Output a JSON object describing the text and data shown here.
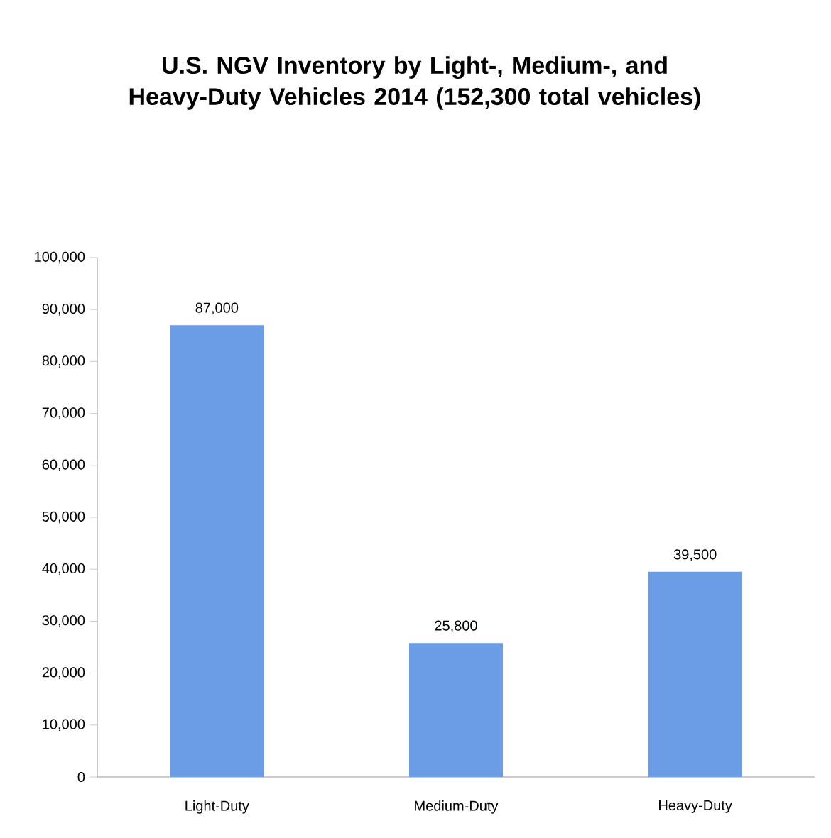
{
  "chart_data": {
    "type": "bar",
    "title": "U.S. NGV Inventory by Light-, Medium-, and Heavy-Duty Vehicles 2014 (152,300 total vehicles)",
    "categories": [
      "Light-Duty",
      "Medium-Duty",
      "Heavy-Duty"
    ],
    "values": [
      87000,
      25800,
      39500
    ],
    "value_labels": [
      "87,000",
      "25,800",
      "39,500"
    ],
    "color": "#6b9de6",
    "ylim": [
      0,
      100000
    ],
    "yticks": [
      0,
      {
        "value": 10000,
        "label": "10,000"
      },
      {
        "value": 20000,
        "label": "20,000"
      },
      {
        "value": 30000,
        "label": "30,000"
      },
      {
        "value": 40000,
        "label": "40,000"
      },
      {
        "value": 50000,
        "label": "50,000"
      },
      {
        "value": 60000,
        "label": "60,000"
      },
      {
        "value": 70000,
        "label": "70,000"
      },
      {
        "value": 80000,
        "label": "80,000"
      },
      {
        "value": 90000,
        "label": "90,000"
      },
      {
        "value": 100000,
        "label": "100,000"
      }
    ],
    "grid": false
  }
}
